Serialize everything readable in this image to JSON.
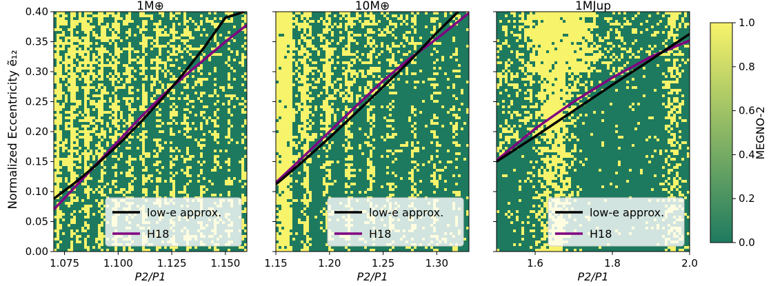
{
  "figure": {
    "shared_ylabel": "Normalized Eccentricity ẽ₁₂",
    "colorbar": {
      "label": "MEGNO-2",
      "ticks": [
        "0.0",
        "0.2",
        "0.4",
        "0.6",
        "0.8",
        "1.0"
      ],
      "range": [
        0,
        1
      ],
      "low_color": "#1e7a5f",
      "high_color": "#f7f36a"
    }
  },
  "chart_data": [
    {
      "type": "heatmap",
      "title": "1M⊕",
      "xlabel": "P2/P1",
      "ylabel": "Normalized Eccentricity ẽ₁₂",
      "xlim": [
        1.07,
        1.16
      ],
      "ylim": [
        0.0,
        0.4
      ],
      "xticks": [
        "1.075",
        "1.100",
        "1.125",
        "1.150"
      ],
      "yticks": [
        "0.00",
        "0.05",
        "0.10",
        "0.15",
        "0.20",
        "0.25",
        "0.30",
        "0.35",
        "0.40"
      ],
      "legend": "bottom-right",
      "series": [
        {
          "name": "low-e approx.",
          "color": "#000000",
          "x": [
            1.07,
            1.08,
            1.09,
            1.1,
            1.11,
            1.12,
            1.13,
            1.14,
            1.15,
            1.159
          ],
          "y": [
            0.088,
            0.115,
            0.145,
            0.178,
            0.214,
            0.253,
            0.295,
            0.34,
            0.39,
            0.4
          ]
        },
        {
          "name": "H18",
          "color": "#800080",
          "x": [
            1.07,
            1.08,
            1.09,
            1.1,
            1.11,
            1.12,
            1.13,
            1.14,
            1.15,
            1.16
          ],
          "y": [
            0.07,
            0.108,
            0.146,
            0.184,
            0.222,
            0.258,
            0.29,
            0.32,
            0.35,
            0.378
          ]
        }
      ]
    },
    {
      "type": "heatmap",
      "title": "10M⊕",
      "xlabel": "P2/P1",
      "xlim": [
        1.15,
        1.33
      ],
      "ylim": [
        0.0,
        0.4
      ],
      "xticks": [
        "1.15",
        "1.20",
        "1.25",
        "1.30"
      ],
      "legend": "bottom-right",
      "series": [
        {
          "name": "low-e approx.",
          "color": "#000000",
          "x": [
            1.15,
            1.175,
            1.2,
            1.225,
            1.25,
            1.275,
            1.3,
            1.32
          ],
          "y": [
            0.112,
            0.15,
            0.19,
            0.232,
            0.275,
            0.318,
            0.365,
            0.4
          ]
        },
        {
          "name": "H18",
          "color": "#800080",
          "x": [
            1.15,
            1.175,
            1.2,
            1.225,
            1.25,
            1.275,
            1.3,
            1.33
          ],
          "y": [
            0.115,
            0.157,
            0.2,
            0.243,
            0.285,
            0.322,
            0.355,
            0.398
          ]
        }
      ]
    },
    {
      "type": "heatmap",
      "title": "1MJup",
      "xlabel": "P2/P1",
      "xlim": [
        1.5,
        2.0
      ],
      "ylim": [
        0.0,
        0.4
      ],
      "xticks": [
        "1.6",
        "1.8",
        "2.0"
      ],
      "legend": "bottom-right",
      "series": [
        {
          "name": "low-e approx.",
          "color": "#000000",
          "x": [
            1.5,
            1.6,
            1.7,
            1.8,
            1.9,
            2.0
          ],
          "y": [
            0.15,
            0.192,
            0.235,
            0.278,
            0.32,
            0.363
          ]
        },
        {
          "name": "H18",
          "color": "#800080",
          "x": [
            1.5,
            1.6,
            1.7,
            1.8,
            1.9,
            2.0
          ],
          "y": [
            0.152,
            0.205,
            0.25,
            0.29,
            0.325,
            0.352
          ]
        }
      ]
    }
  ]
}
